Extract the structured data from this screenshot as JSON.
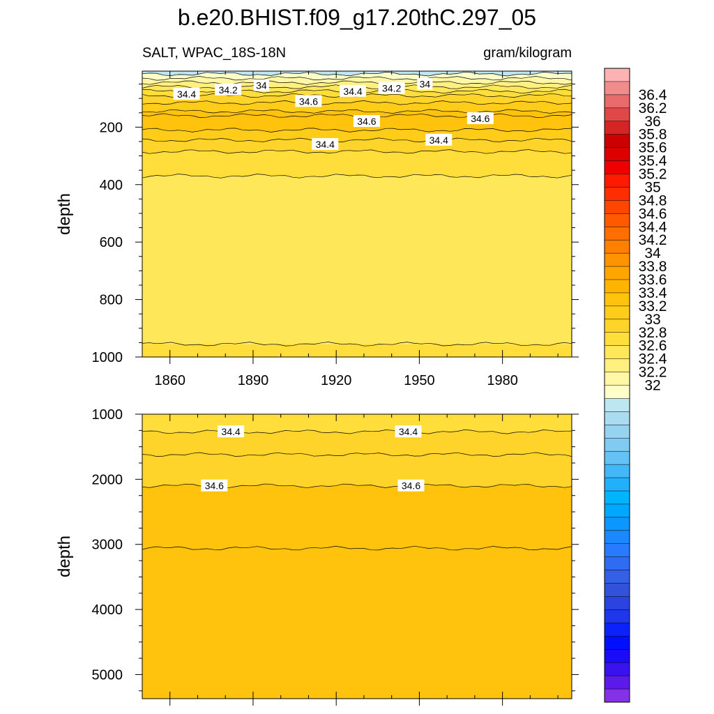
{
  "title": "b.e20.BHIST.f09_g17.20thC.297_05",
  "left_subtitle": "SALT, WPAC_18S-18N",
  "right_subtitle": "gram/kilogram",
  "chart_data": [
    {
      "type": "heatmap",
      "panel": "upper",
      "ylabel": "depth",
      "xlim": [
        1850,
        2005
      ],
      "ylim": [
        1000,
        5
      ],
      "x_ticks": [
        1860,
        1890,
        1920,
        1950,
        1980
      ],
      "y_ticks": [
        200,
        400,
        600,
        800,
        1000
      ],
      "x_tick_labels": [
        "1860",
        "1890",
        "1920",
        "1950",
        "1980"
      ],
      "y_tick_labels": [
        "200",
        "400",
        "600",
        "800",
        "1000"
      ],
      "contour_interval": 0.1,
      "isolines": [
        {
          "level": 33.9,
          "depth": 15
        },
        {
          "level": 34.0,
          "depth": 30
        },
        {
          "level": 34.1,
          "depth": 45
        },
        {
          "level": 34.2,
          "depth": 60
        },
        {
          "level": 34.3,
          "depth": 75
        },
        {
          "level": 34.4,
          "depth": 90
        },
        {
          "level": 34.5,
          "depth": 115
        },
        {
          "level": 34.6,
          "depth": 145
        },
        {
          "level": 34.7,
          "depth": 160
        },
        {
          "level": 34.6,
          "depth": 210
        },
        {
          "level": 34.5,
          "depth": 245
        },
        {
          "level": 34.4,
          "depth": 285
        },
        {
          "level": 34.3,
          "depth": 370
        },
        {
          "level": 34.3,
          "depth": 955
        }
      ],
      "contour_labels": [
        {
          "text": "34.4",
          "x": 1866,
          "depth": 85
        },
        {
          "text": "34.2",
          "x": 1881,
          "depth": 70
        },
        {
          "text": "34",
          "x": 1893,
          "depth": 55
        },
        {
          "text": "34.6",
          "x": 1910,
          "depth": 110
        },
        {
          "text": "34.4",
          "x": 1926,
          "depth": 75
        },
        {
          "text": "34.2",
          "x": 1940,
          "depth": 65
        },
        {
          "text": "34",
          "x": 1952,
          "depth": 50
        },
        {
          "text": "34.6",
          "x": 1931,
          "depth": 180
        },
        {
          "text": "34.4",
          "x": 1916,
          "depth": 260
        },
        {
          "text": "34.6",
          "x": 1972,
          "depth": 170
        },
        {
          "text": "34.4",
          "x": 1957,
          "depth": 245
        }
      ]
    },
    {
      "type": "heatmap",
      "panel": "lower",
      "ylabel": "depth",
      "xlim": [
        1850,
        2005
      ],
      "ylim": [
        5370,
        1000
      ],
      "y_ticks": [
        1000,
        2000,
        3000,
        4000,
        5000
      ],
      "y_tick_labels": [
        "1000",
        "2000",
        "3000",
        "4000",
        "5000"
      ],
      "isolines": [
        {
          "level": 34.4,
          "depth": 1270
        },
        {
          "level": 34.5,
          "depth": 1620
        },
        {
          "level": 34.6,
          "depth": 2100
        },
        {
          "level": 34.7,
          "depth": 3060
        }
      ],
      "contour_labels": [
        {
          "text": "34.4",
          "x": 1882,
          "depth": 1270
        },
        {
          "text": "34.4",
          "x": 1946,
          "depth": 1270
        },
        {
          "text": "34.6",
          "x": 1876,
          "depth": 2100
        },
        {
          "text": "34.6",
          "x": 1947,
          "depth": 2100
        }
      ]
    }
  ],
  "colorbar": {
    "labels": [
      "36.4",
      "36.2",
      "36",
      "35.8",
      "35.6",
      "35.4",
      "35.2",
      "35",
      "34.8",
      "34.6",
      "34.4",
      "34.2",
      "34",
      "33.8",
      "33.6",
      "33.4",
      "33.2",
      "33",
      "32.8",
      "32.6",
      "32.4",
      "32.2",
      "32"
    ],
    "colors": [
      "#fdb3b4",
      "#f08c8c",
      "#e86a6a",
      "#e04848",
      "#d42424",
      "#cc0000",
      "#dd0000",
      "#ee0000",
      "#ff1a00",
      "#ff2e00",
      "#ff4600",
      "#ff5a00",
      "#ff6e00",
      "#ff7f00",
      "#ff9300",
      "#ffa500",
      "#ffb400",
      "#ffc20d",
      "#ffcc1a",
      "#ffd42a",
      "#ffde3c",
      "#ffe75a",
      "#fff07f",
      "#fff7a6",
      "#ffffc8",
      "#bde6f1",
      "#a9dcf0",
      "#96d3f1",
      "#80cbf2",
      "#64c2f4",
      "#44b8f7",
      "#22b0fa",
      "#00b4ff",
      "#00a7ff",
      "#0c96ff",
      "#1b88ff",
      "#287aff",
      "#2f6cf4",
      "#3360e6",
      "#3352dc",
      "#2b43e0",
      "#1f36ec",
      "#0c22fa",
      "#0010ff",
      "#1a0cf6",
      "#3a11ef",
      "#5b1ae9",
      "#8431e8"
    ]
  }
}
